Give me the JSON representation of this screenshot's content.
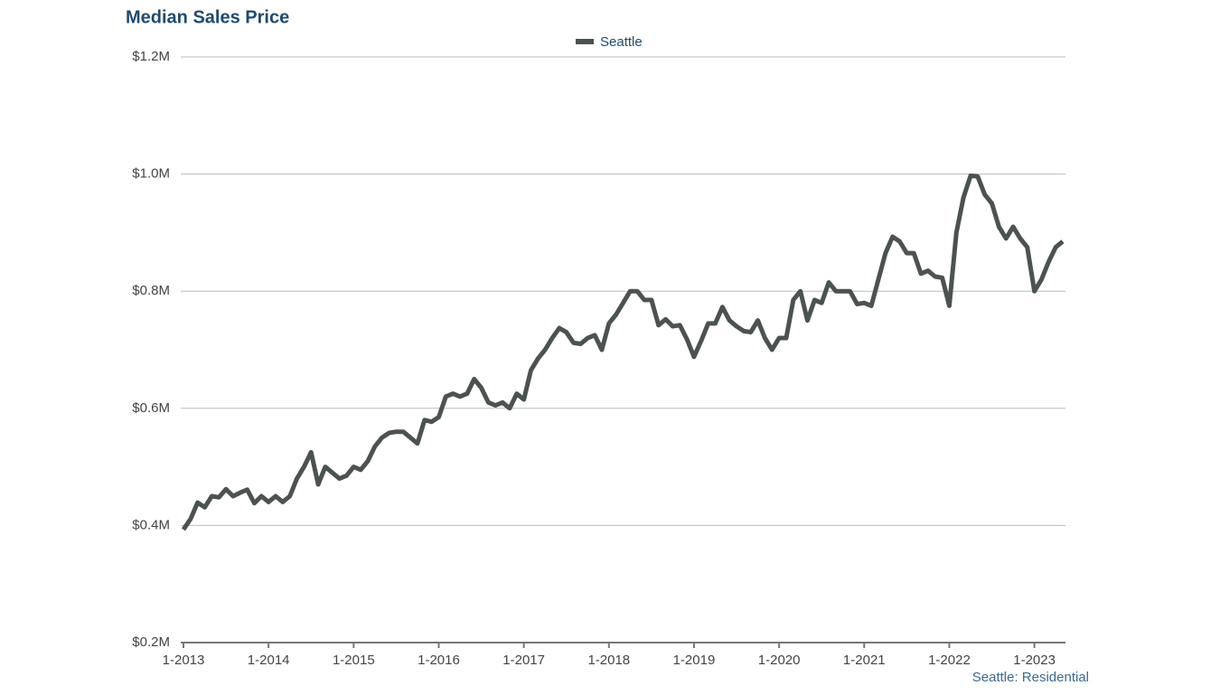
{
  "chart_data": {
    "type": "line",
    "title": "Median Sales Price",
    "note": "Seattle: Residential",
    "x": [
      "1-2013",
      "2-2013",
      "3-2013",
      "4-2013",
      "5-2013",
      "6-2013",
      "7-2013",
      "8-2013",
      "9-2013",
      "10-2013",
      "11-2013",
      "12-2013",
      "1-2014",
      "2-2014",
      "3-2014",
      "4-2014",
      "5-2014",
      "6-2014",
      "7-2014",
      "8-2014",
      "9-2014",
      "10-2014",
      "11-2014",
      "12-2014",
      "1-2015",
      "2-2015",
      "3-2015",
      "4-2015",
      "5-2015",
      "6-2015",
      "7-2015",
      "8-2015",
      "9-2015",
      "10-2015",
      "11-2015",
      "12-2015",
      "1-2016",
      "2-2016",
      "3-2016",
      "4-2016",
      "5-2016",
      "6-2016",
      "7-2016",
      "8-2016",
      "9-2016",
      "10-2016",
      "11-2016",
      "12-2016",
      "1-2017",
      "2-2017",
      "3-2017",
      "4-2017",
      "5-2017",
      "6-2017",
      "7-2017",
      "8-2017",
      "9-2017",
      "10-2017",
      "11-2017",
      "12-2017",
      "1-2018",
      "2-2018",
      "3-2018",
      "4-2018",
      "5-2018",
      "6-2018",
      "7-2018",
      "8-2018",
      "9-2018",
      "10-2018",
      "11-2018",
      "12-2018",
      "1-2019",
      "2-2019",
      "3-2019",
      "4-2019",
      "5-2019",
      "6-2019",
      "7-2019",
      "8-2019",
      "9-2019",
      "10-2019",
      "11-2019",
      "12-2019",
      "1-2020",
      "2-2020",
      "3-2020",
      "4-2020",
      "5-2020",
      "6-2020",
      "7-2020",
      "8-2020",
      "9-2020",
      "10-2020",
      "11-2020",
      "12-2020",
      "1-2021",
      "2-2021",
      "3-2021",
      "4-2021",
      "5-2021",
      "6-2021",
      "7-2021",
      "8-2021",
      "9-2021",
      "10-2021",
      "11-2021",
      "12-2021",
      "1-2022",
      "2-2022",
      "3-2022",
      "4-2022",
      "5-2022",
      "6-2022",
      "7-2022",
      "8-2022",
      "9-2022",
      "10-2022",
      "11-2022",
      "12-2022",
      "1-2023",
      "2-2023",
      "3-2023",
      "4-2023",
      "5-2023"
    ],
    "series": [
      {
        "name": "Seattle",
        "color": "#4a5350",
        "values": [
          393000,
          411000,
          439000,
          431000,
          450000,
          448000,
          462000,
          450000,
          456000,
          461000,
          438000,
          450000,
          440000,
          450000,
          440000,
          450000,
          480000,
          500000,
          525000,
          470000,
          500000,
          490000,
          480000,
          485000,
          500000,
          495000,
          510000,
          535000,
          550000,
          558000,
          560000,
          560000,
          550000,
          540000,
          580000,
          577000,
          585000,
          620000,
          625000,
          620000,
          625000,
          650000,
          635000,
          610000,
          605000,
          610000,
          600000,
          625000,
          615000,
          665000,
          685000,
          700000,
          720000,
          737000,
          730000,
          712000,
          710000,
          720000,
          725000,
          700000,
          745000,
          760000,
          780000,
          800000,
          800000,
          785000,
          785000,
          742000,
          752000,
          740000,
          742000,
          718000,
          688000,
          715000,
          745000,
          745000,
          773000,
          750000,
          740000,
          732000,
          730000,
          750000,
          720000,
          700000,
          720000,
          720000,
          785000,
          800000,
          750000,
          785000,
          780000,
          815000,
          800000,
          800000,
          800000,
          778000,
          780000,
          775000,
          820000,
          865000,
          893000,
          885000,
          865000,
          865000,
          830000,
          835000,
          825000,
          823000,
          775000,
          900000,
          960000,
          997000,
          996000,
          965000,
          950000,
          910000,
          890000,
          910000,
          890000,
          875000,
          800000,
          820000,
          850000,
          875000,
          885000
        ]
      }
    ],
    "ylim": [
      200000,
      1200000
    ],
    "yticks": [
      {
        "value": 200000,
        "label": "$0.2M"
      },
      {
        "value": 400000,
        "label": "$0.4M"
      },
      {
        "value": 600000,
        "label": "$0.6M"
      },
      {
        "value": 800000,
        "label": "$0.8M"
      },
      {
        "value": 1000000,
        "label": "$1.0M"
      },
      {
        "value": 1200000,
        "label": "$1.2M"
      }
    ],
    "grid": true
  }
}
